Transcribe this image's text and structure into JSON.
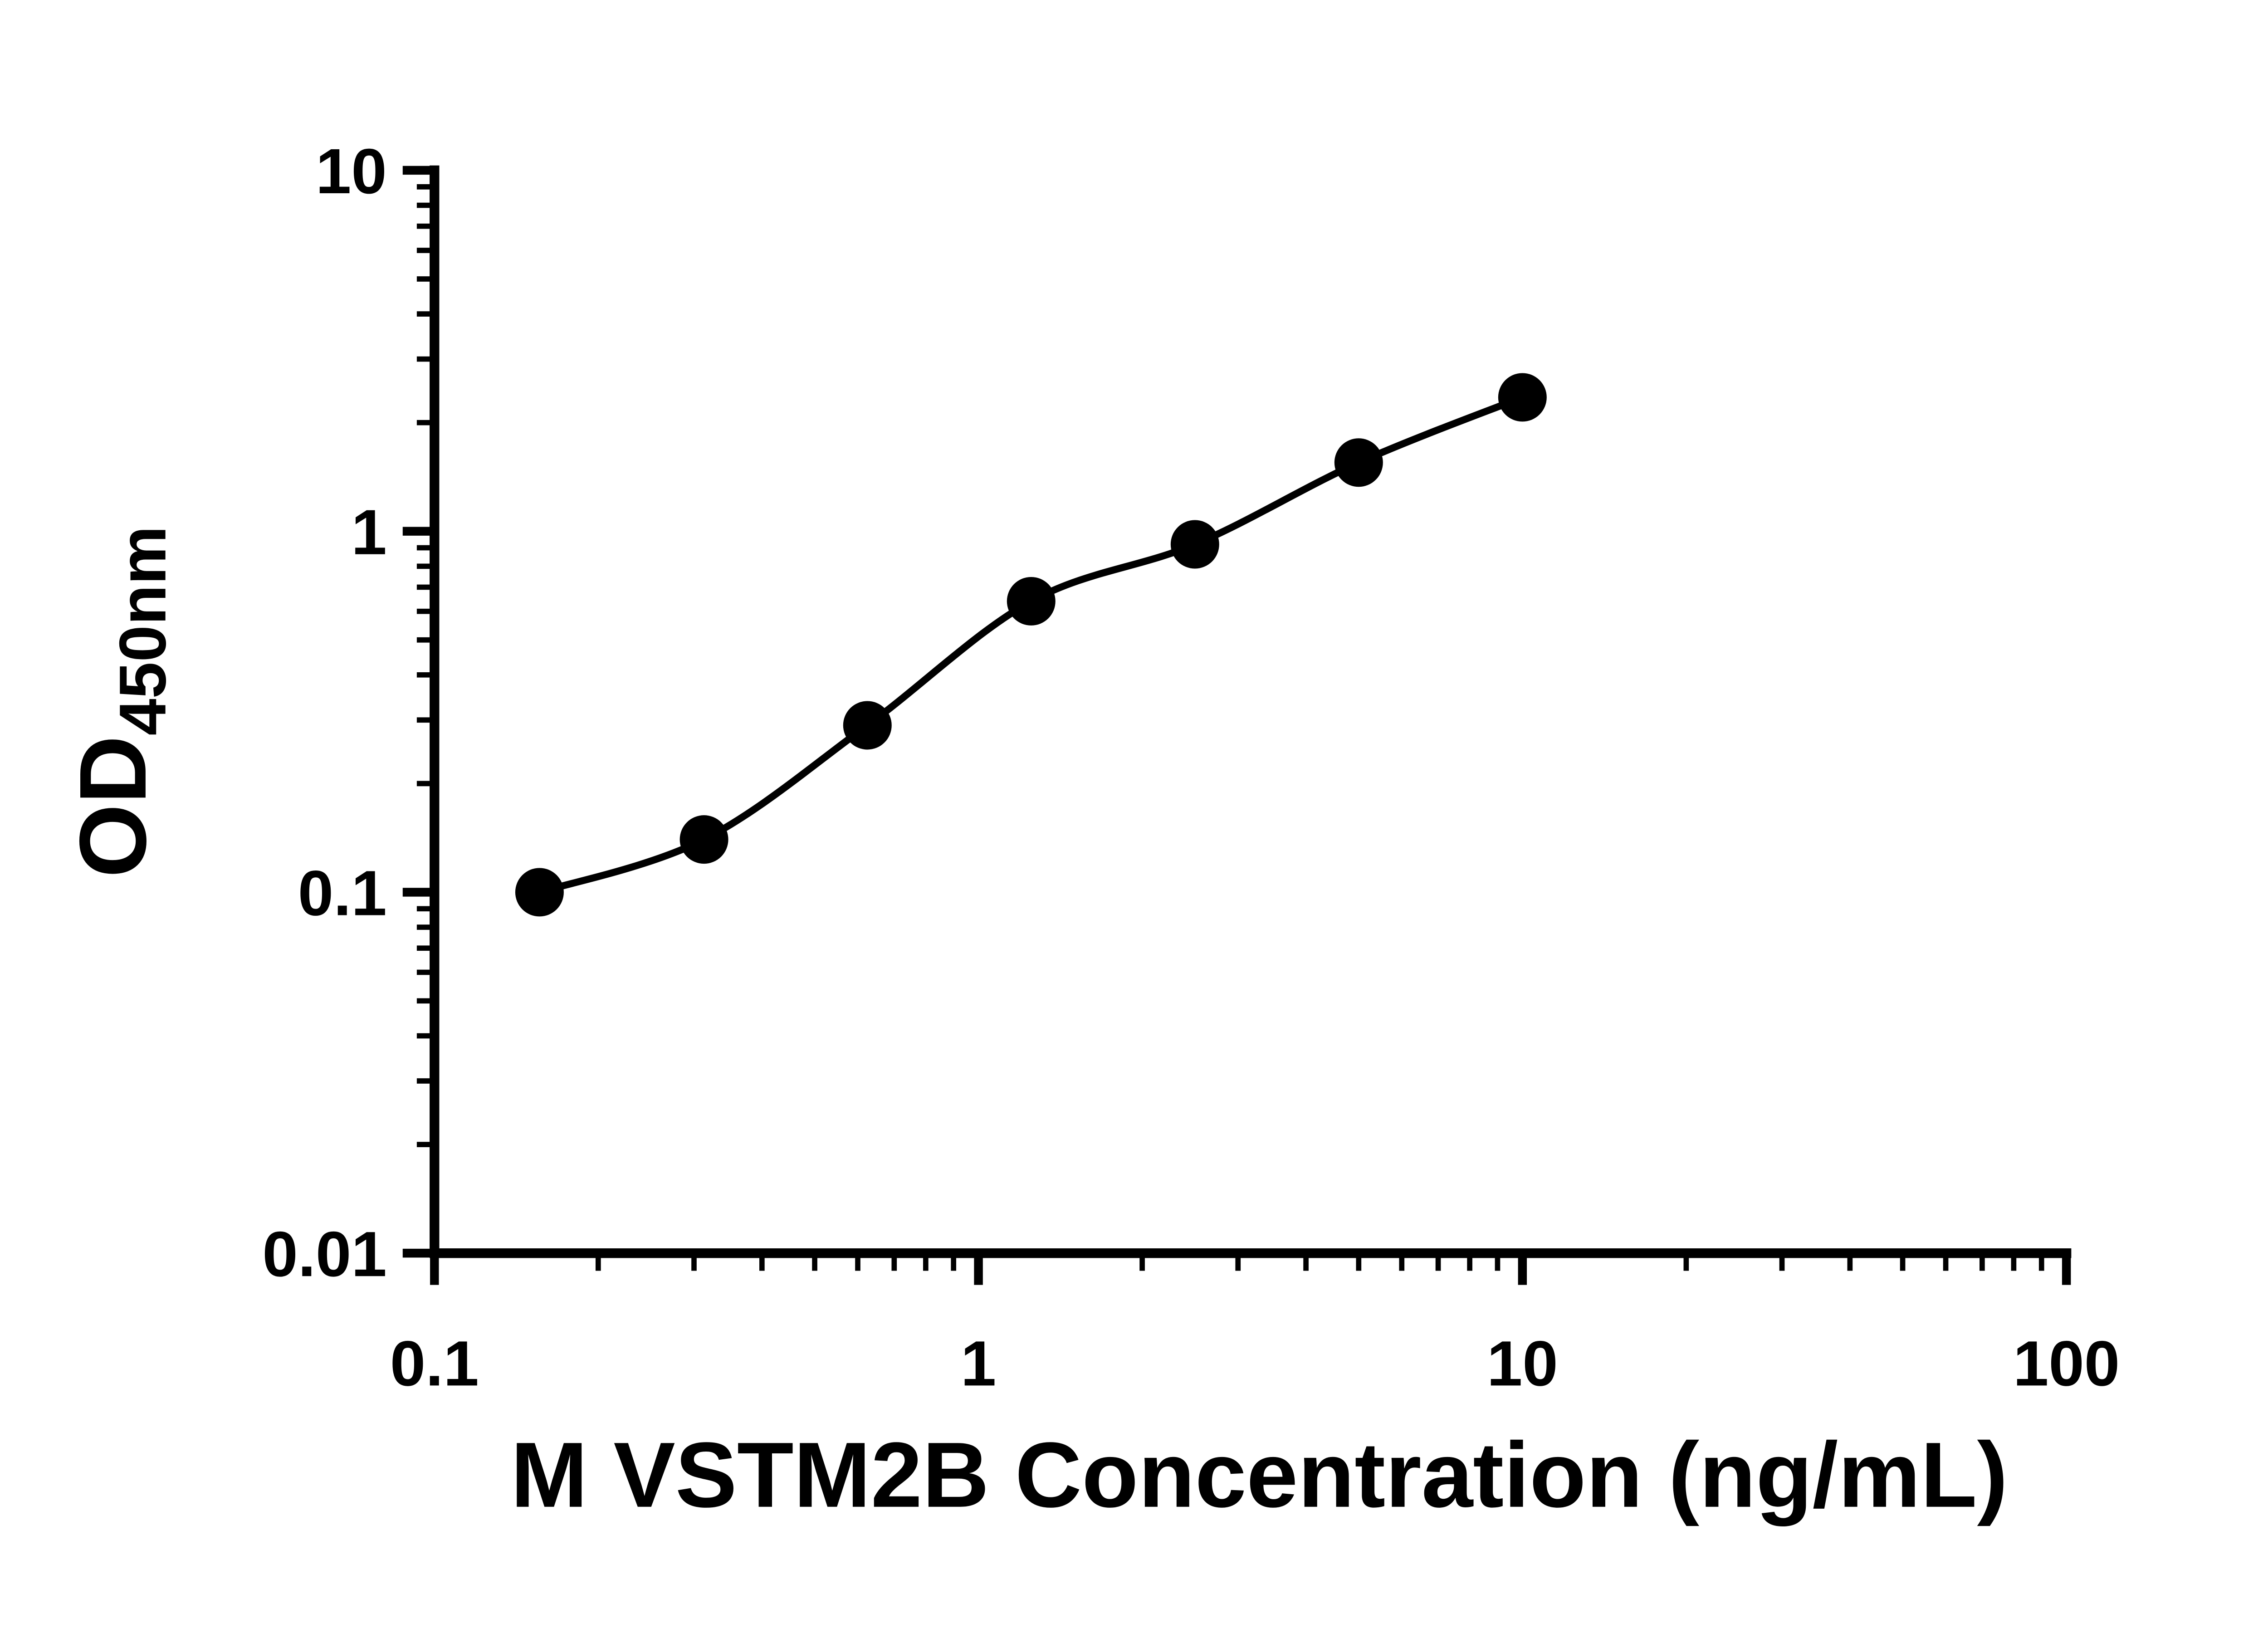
{
  "chart_data": {
    "type": "scatter",
    "title": "",
    "xlabel": "M VSTM2B Concentration (ng/mL)",
    "ylabel_main": "OD",
    "ylabel_sub": "450nm",
    "x_scale": "log",
    "y_scale": "log",
    "xlim": [
      0.1,
      100
    ],
    "ylim": [
      0.01,
      10
    ],
    "grid": false,
    "legend": "none",
    "x_ticks": [
      {
        "value": 0.1,
        "label": "0.1"
      },
      {
        "value": 1,
        "label": "1"
      },
      {
        "value": 10,
        "label": "10"
      },
      {
        "value": 100,
        "label": "100"
      }
    ],
    "y_ticks": [
      {
        "value": 10,
        "label": "10"
      },
      {
        "value": 1,
        "label": "1"
      },
      {
        "value": 0.1,
        "label": "0.1"
      },
      {
        "value": 0.01,
        "label": "0.01"
      }
    ],
    "points": [
      {
        "x": 0.156,
        "y": 0.1
      },
      {
        "x": 0.313,
        "y": 0.14
      },
      {
        "x": 0.625,
        "y": 0.29
      },
      {
        "x": 1.25,
        "y": 0.64
      },
      {
        "x": 2.5,
        "y": 0.92
      },
      {
        "x": 5,
        "y": 1.55
      },
      {
        "x": 10,
        "y": 2.35
      }
    ],
    "curve": "smooth-fit-through-points",
    "marker": "filled-circle",
    "marker_color": "#000000",
    "line_color": "#000000",
    "axis_color": "#000000",
    "background_color": "#ffffff"
  }
}
